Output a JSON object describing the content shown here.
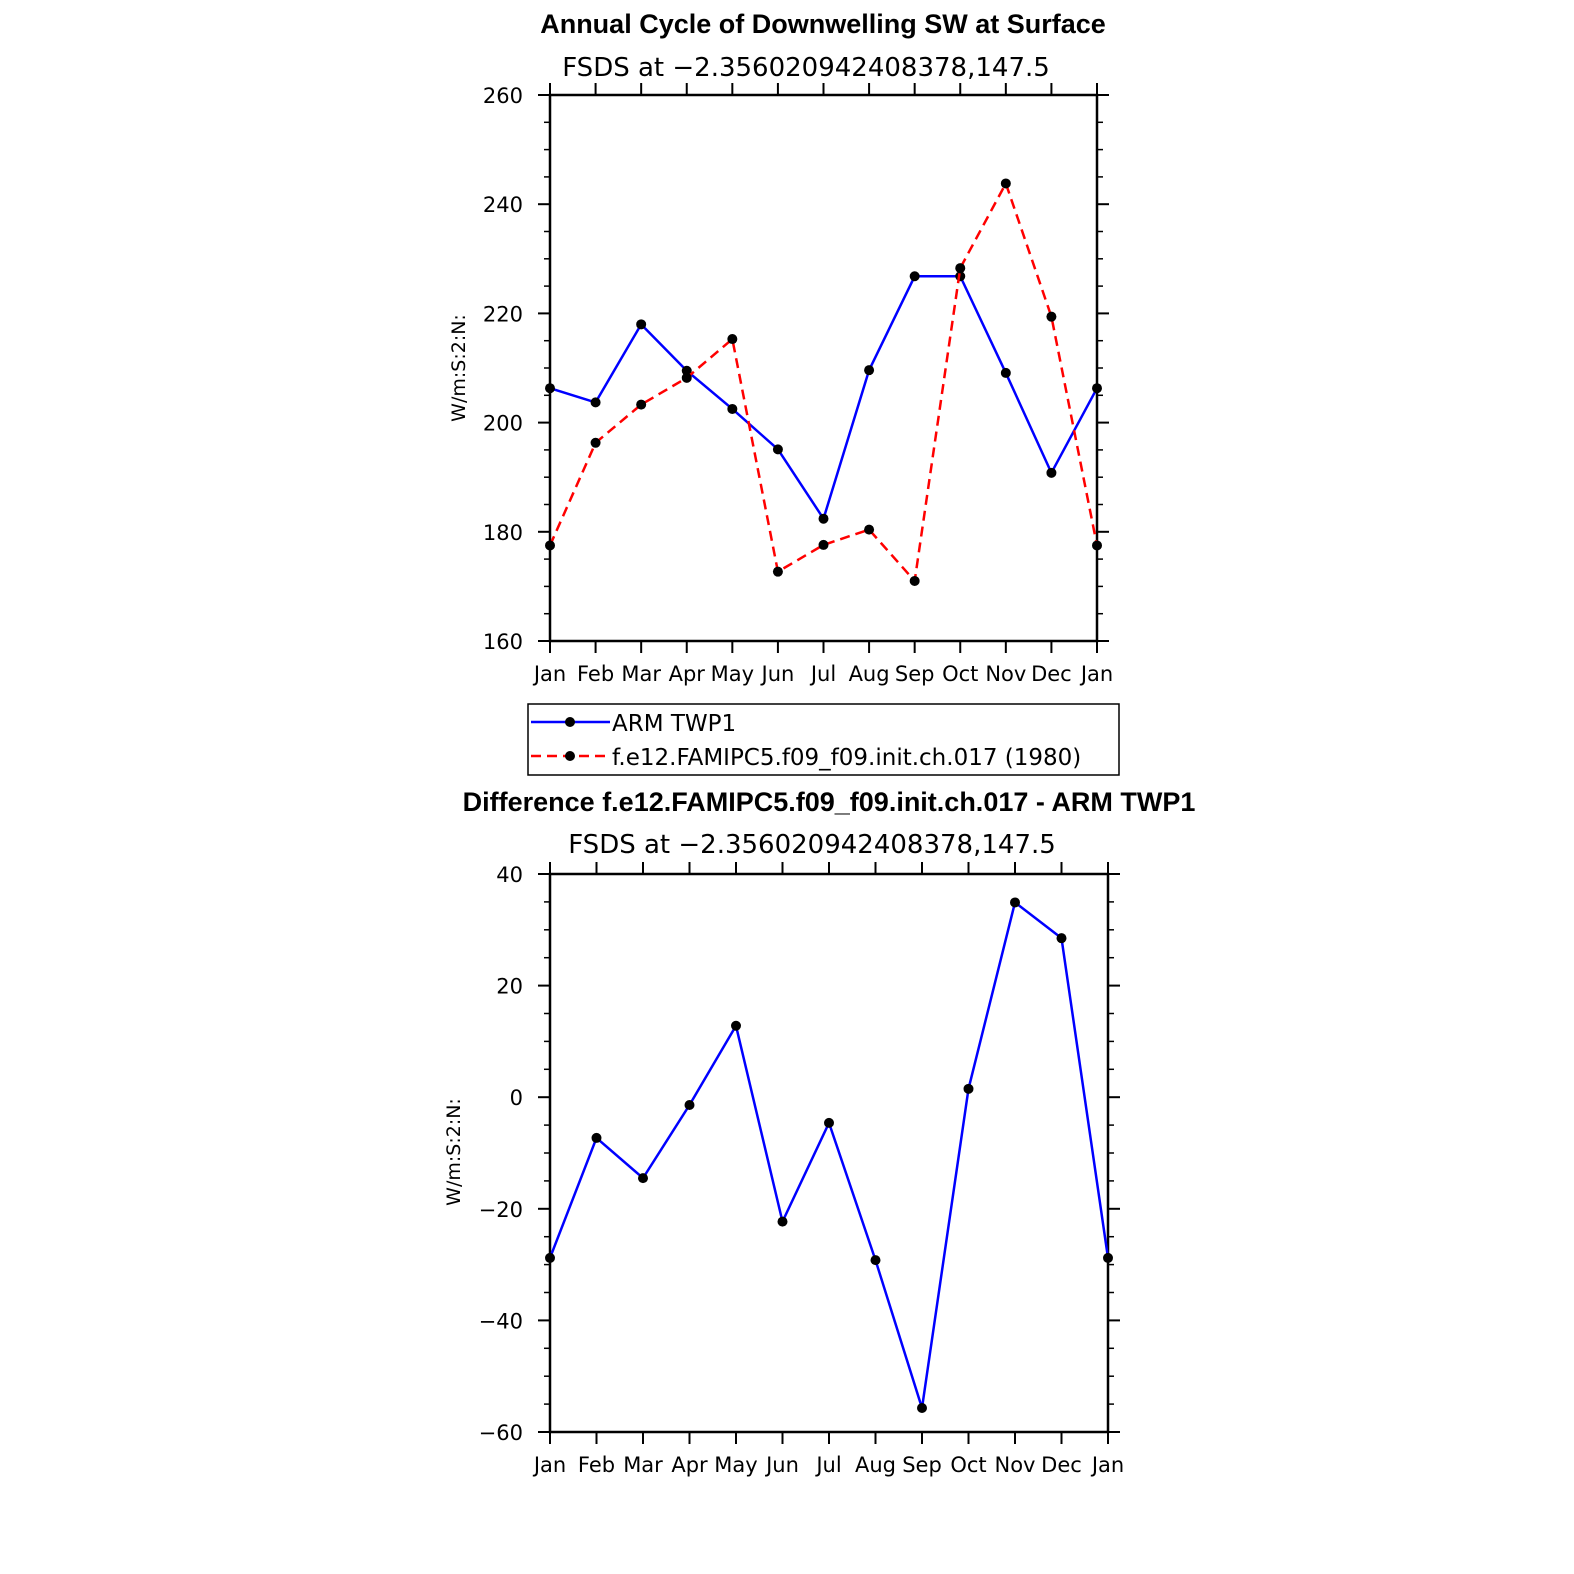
{
  "chart_data": [
    {
      "type": "line",
      "title": "Annual Cycle of Downwelling SW at Surface",
      "subtitle": "FSDS at −2.356020942408378,147.5",
      "ylabel": "W/m:S:2:N:",
      "xlabel": "",
      "categories": [
        "Jan",
        "Feb",
        "Mar",
        "Apr",
        "May",
        "Jun",
        "Jul",
        "Aug",
        "Sep",
        "Oct",
        "Nov",
        "Dec",
        "Jan"
      ],
      "ylim": [
        160,
        260
      ],
      "yticks": [
        160,
        180,
        200,
        220,
        240,
        260
      ],
      "ytick_labels": [
        "160",
        "180",
        "200",
        "220",
        "240",
        "260"
      ],
      "legend_position": "below",
      "series": [
        {
          "name": "ARM TWP1",
          "color": "#0000ff",
          "dash": "solid",
          "values": [
            206.3,
            203.7,
            218.0,
            209.5,
            202.5,
            195.1,
            182.4,
            209.6,
            226.8,
            226.8,
            209.1,
            190.8,
            206.3
          ]
        },
        {
          "name": "f.e12.FAMIPC5.f09_f09.init.ch.017 (1980)",
          "color": "#ff0000",
          "dash": "dashed",
          "values": [
            177.5,
            196.3,
            203.3,
            208.2,
            215.3,
            172.7,
            177.6,
            180.4,
            171.0,
            228.3,
            243.8,
            219.4,
            177.5
          ]
        }
      ]
    },
    {
      "type": "line",
      "title": "Difference f.e12.FAMIPC5.f09_f09.init.ch.017 - ARM TWP1",
      "subtitle": "FSDS at −2.356020942408378,147.5",
      "ylabel": "W/m:S:2:N:",
      "xlabel": "",
      "categories": [
        "Jan",
        "Feb",
        "Mar",
        "Apr",
        "May",
        "Jun",
        "Jul",
        "Aug",
        "Sep",
        "Oct",
        "Nov",
        "Dec",
        "Jan"
      ],
      "ylim": [
        -60,
        40
      ],
      "yticks": [
        -60,
        -40,
        -20,
        0,
        20,
        40
      ],
      "ytick_labels": [
        "−60",
        "−40",
        "−20",
        "0",
        "20",
        "40"
      ],
      "series": [
        {
          "color": "#0000ff",
          "dash": "solid",
          "values": [
            -28.8,
            -7.3,
            -14.5,
            -1.4,
            12.8,
            -22.3,
            -4.6,
            -29.2,
            -55.7,
            1.5,
            34.9,
            28.5,
            -28.8
          ]
        }
      ]
    }
  ]
}
